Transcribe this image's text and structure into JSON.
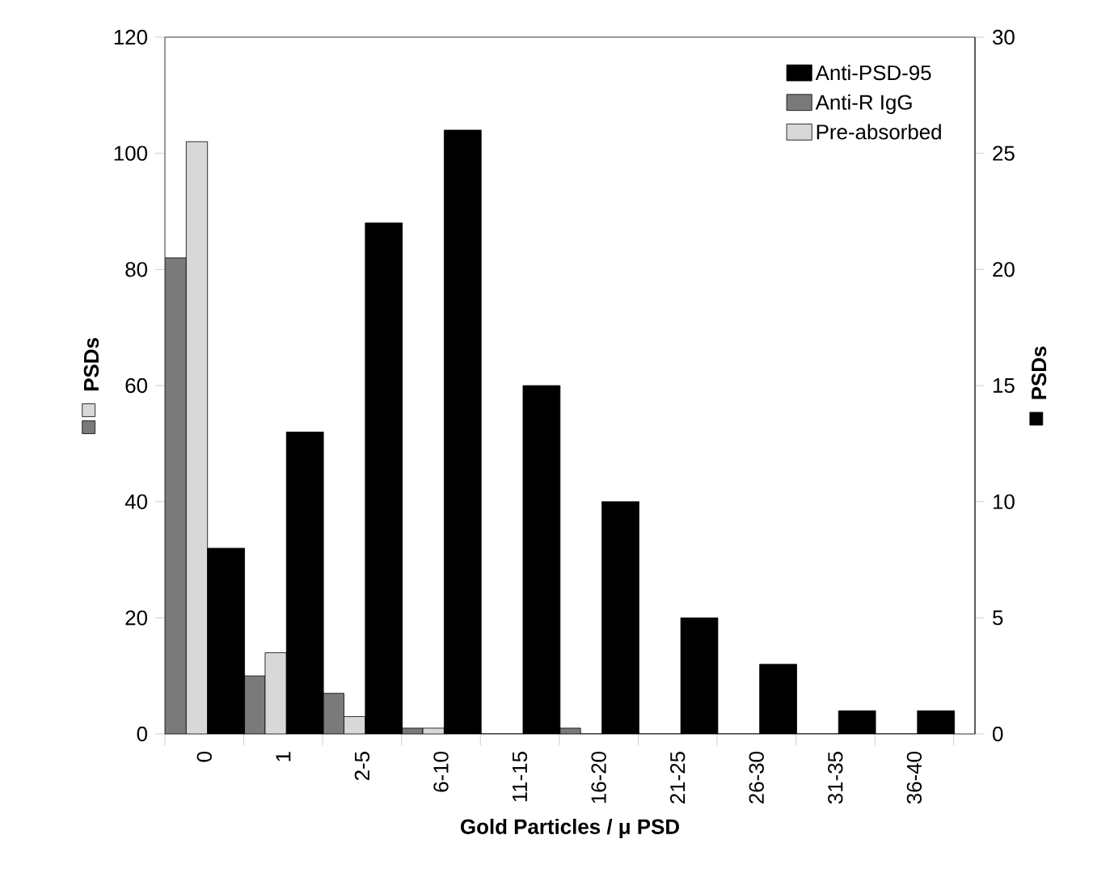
{
  "chart_data": {
    "type": "bar",
    "xlabel": "Gold Particles / μ PSD",
    "ylabel": "PSDs",
    "y2label": "PSDs",
    "categories": [
      "0",
      "1",
      "2-5",
      "6-10",
      "11-15",
      "16-20",
      "21-25",
      "26-30",
      "31-35",
      "36-40"
    ],
    "ylim": [
      0,
      120
    ],
    "yticks": [
      0,
      20,
      40,
      60,
      80,
      100,
      120
    ],
    "y2lim": [
      0,
      30
    ],
    "y2ticks": [
      0,
      5,
      10,
      15,
      20,
      25,
      30
    ],
    "legend": "top right",
    "series": [
      {
        "name": "Anti-PSD-95",
        "color": "#000000",
        "axis": "y2",
        "values": [
          8,
          13,
          22,
          26,
          15,
          10,
          5,
          3,
          1,
          1
        ]
      },
      {
        "name": "Anti-R IgG",
        "color": "#7a7a7a",
        "values": [
          82,
          10,
          7,
          1,
          0,
          1,
          0,
          0,
          0,
          0
        ]
      },
      {
        "name": "Pre-absorbed",
        "color": "#d8d8d8",
        "values": [
          102,
          14,
          3,
          1,
          0,
          0,
          0,
          0,
          0,
          0
        ]
      }
    ]
  }
}
